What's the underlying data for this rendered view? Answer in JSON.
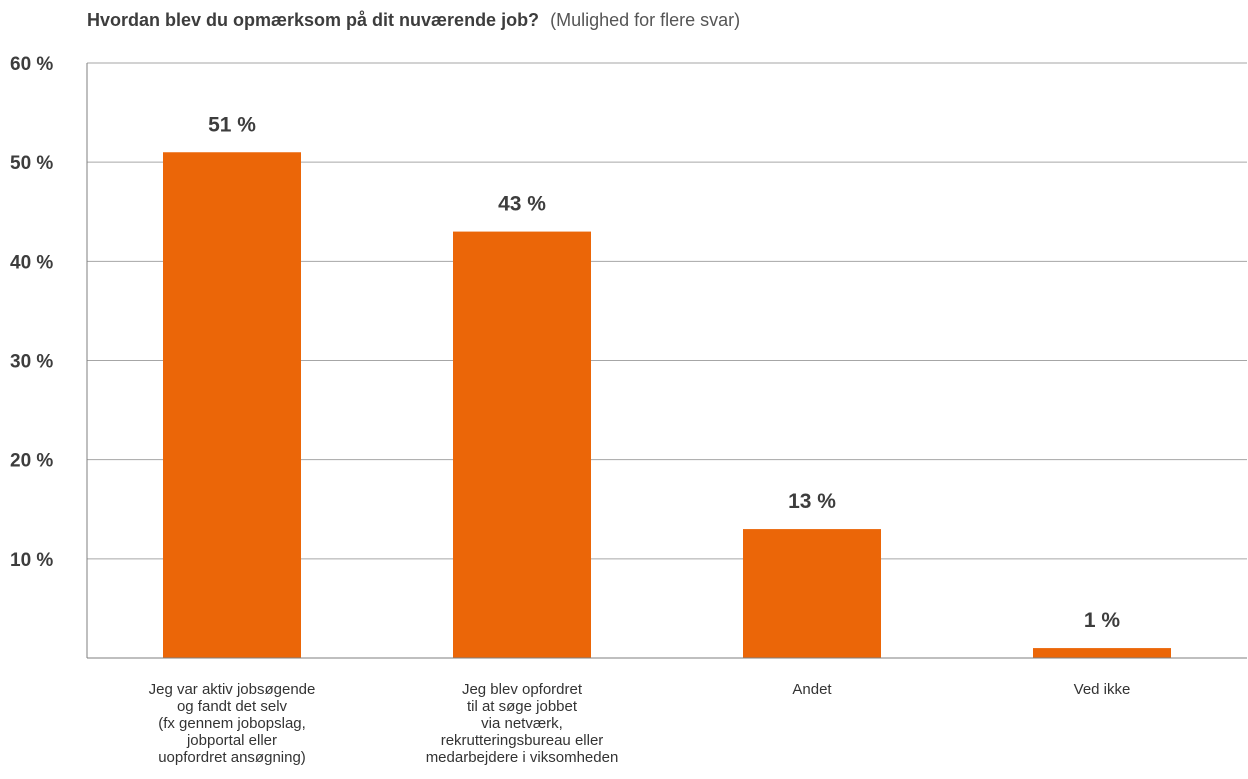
{
  "chart_data": {
    "type": "bar",
    "title": "Hvordan blev du opmærksom på dit nuværende job?",
    "subtitle": "(Mulighed for flere svar)",
    "categories": [
      [
        "Jeg var aktiv jobsøgende",
        "og fandt det selv",
        "(fx gennem jobopslag,",
        "jobportal eller",
        "uopfordret ansøgning)"
      ],
      [
        "Jeg blev opfordret",
        "til at søge jobbet",
        "via netværk,",
        "rekrutteringsbureau eller",
        "medarbejdere i viksomheden"
      ],
      [
        "Andet"
      ],
      [
        "Ved ikke"
      ]
    ],
    "values": [
      51,
      43,
      13,
      1
    ],
    "value_labels": [
      "51 %",
      "43 %",
      "13 %",
      "1 %"
    ],
    "ylim": [
      0,
      60
    ],
    "yticks": [
      10,
      20,
      30,
      40,
      50,
      60
    ],
    "ytick_labels": [
      "10 %",
      "20 %",
      "30 %",
      "40 %",
      "50 %",
      "60 %"
    ],
    "grid": true,
    "bar_color": "#eb6608"
  }
}
